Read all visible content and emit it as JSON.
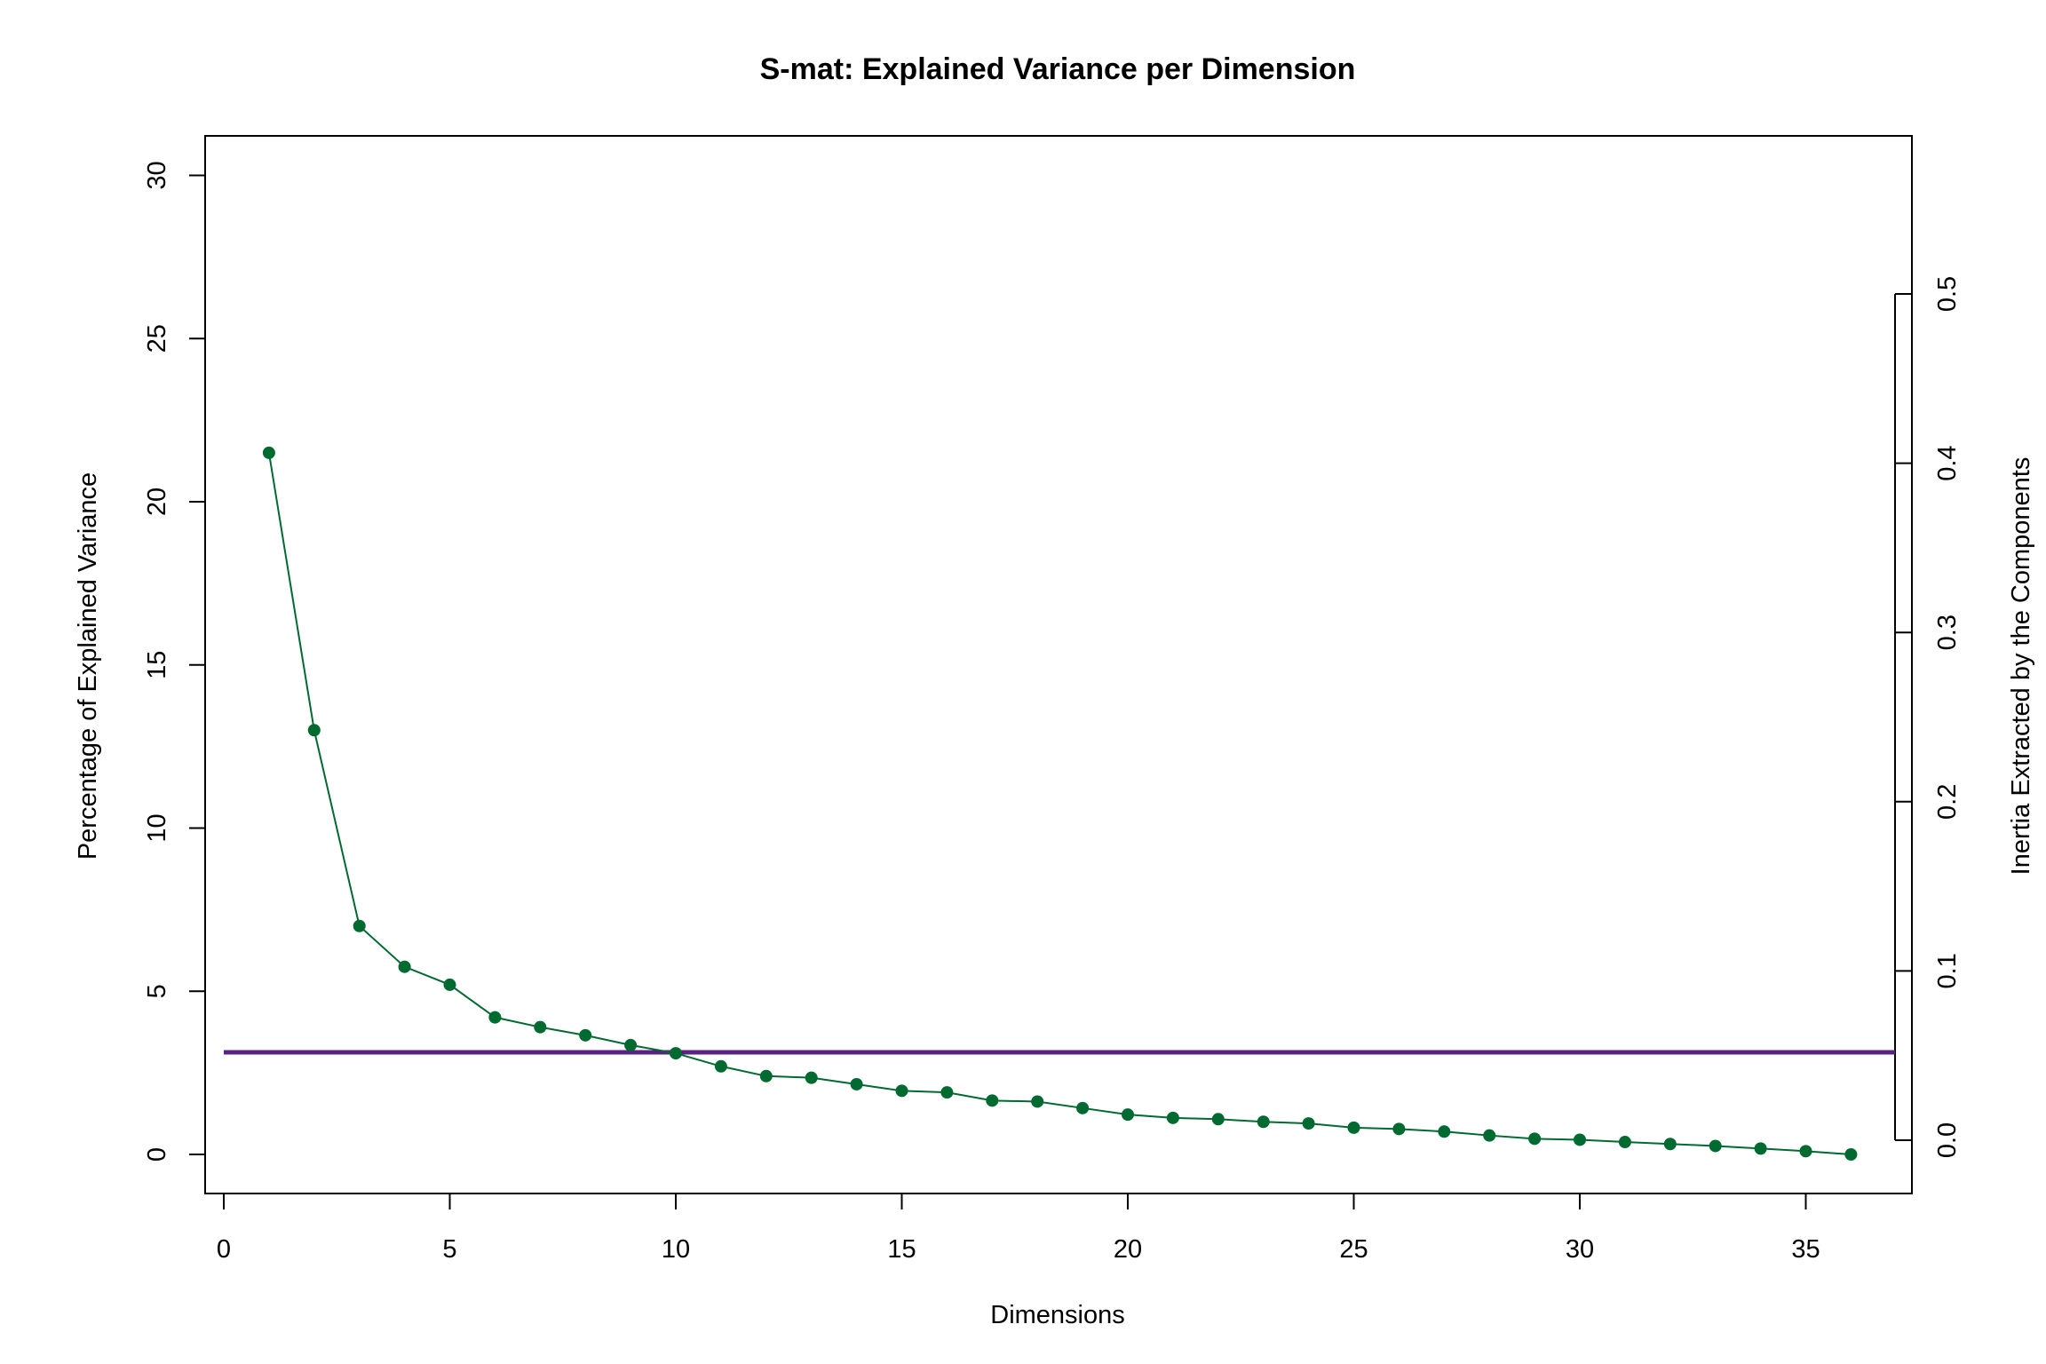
{
  "chart_data": {
    "type": "line",
    "title": "S-mat: Explained Variance per Dimension",
    "xlabel": "Dimensions",
    "ylabel": "Percentage of Explained Variance",
    "ylabel_right": "Inertia Extracted by the Components",
    "xlim": [
      0,
      37
    ],
    "ylim": [
      0,
      30
    ],
    "ylim_right": [
      0,
      0.5
    ],
    "x_ticks": [
      0,
      5,
      10,
      15,
      20,
      25,
      30,
      35
    ],
    "y_ticks": [
      0,
      5,
      10,
      15,
      20,
      25,
      30
    ],
    "y_ticks_right": [
      "0.0",
      "0.1",
      "0.2",
      "0.3",
      "0.4",
      "0.5"
    ],
    "grid": false,
    "series": [
      {
        "x": [
          1,
          2,
          3,
          4,
          5,
          6,
          7,
          8,
          9,
          10,
          11,
          12,
          13,
          14,
          15,
          16,
          17,
          18,
          19,
          20,
          21,
          22,
          23,
          24,
          25,
          26,
          27,
          28,
          29,
          30,
          31,
          32,
          33,
          34,
          35,
          36
        ],
        "values": [
          21.5,
          13.0,
          7.0,
          5.75,
          5.2,
          4.2,
          3.9,
          3.65,
          3.35,
          3.1,
          2.7,
          2.4,
          2.35,
          2.15,
          1.95,
          1.9,
          1.65,
          1.62,
          1.42,
          1.22,
          1.12,
          1.08,
          1.0,
          0.95,
          0.82,
          0.78,
          0.7,
          0.58,
          0.48,
          0.45,
          0.38,
          0.32,
          0.26,
          0.18,
          0.1,
          0.0
        ],
        "color": "#006A30"
      }
    ],
    "reference_line": {
      "y": 3.13,
      "color": "#5B2184"
    }
  }
}
